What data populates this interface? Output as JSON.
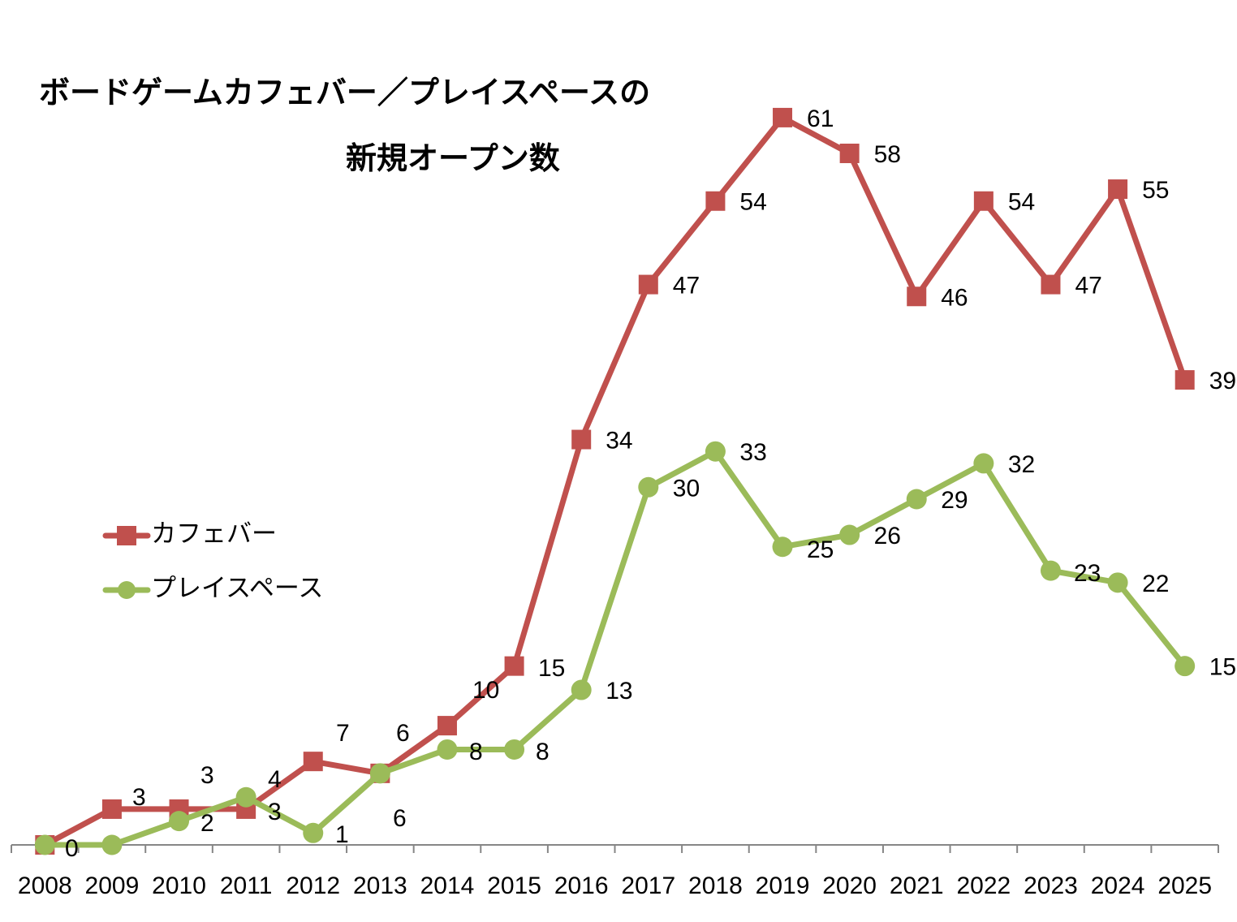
{
  "chart_data": {
    "type": "line",
    "title": "ボードゲームカフェバー／プレイスペースの新規オープン数",
    "title_lines": [
      "ボードゲームカフェバー／プレイスペースの",
      "新規オープン数"
    ],
    "xlabel": "",
    "ylabel": "",
    "categories": [
      "2008",
      "2009",
      "2010",
      "2011",
      "2012",
      "2013",
      "2014",
      "2015",
      "2016",
      "2017",
      "2018",
      "2019",
      "2020",
      "2021",
      "2022",
      "2023",
      "2024",
      "2025"
    ],
    "ylim": [
      0,
      61
    ],
    "grid": false,
    "legend_position": "left-middle",
    "series": [
      {
        "name": "カフェバー",
        "color": "#C0504D",
        "marker": "square",
        "values": [
          0,
          3,
          3,
          3,
          7,
          6,
          10,
          15,
          34,
          47,
          54,
          61,
          58,
          46,
          54,
          47,
          55,
          39
        ]
      },
      {
        "name": "プレイスペース",
        "color": "#9BBB59",
        "marker": "circle",
        "values": [
          0,
          0,
          2,
          4,
          1,
          6,
          8,
          8,
          13,
          30,
          33,
          25,
          26,
          29,
          32,
          23,
          22,
          15
        ]
      }
    ],
    "data_labels_shown": true
  }
}
